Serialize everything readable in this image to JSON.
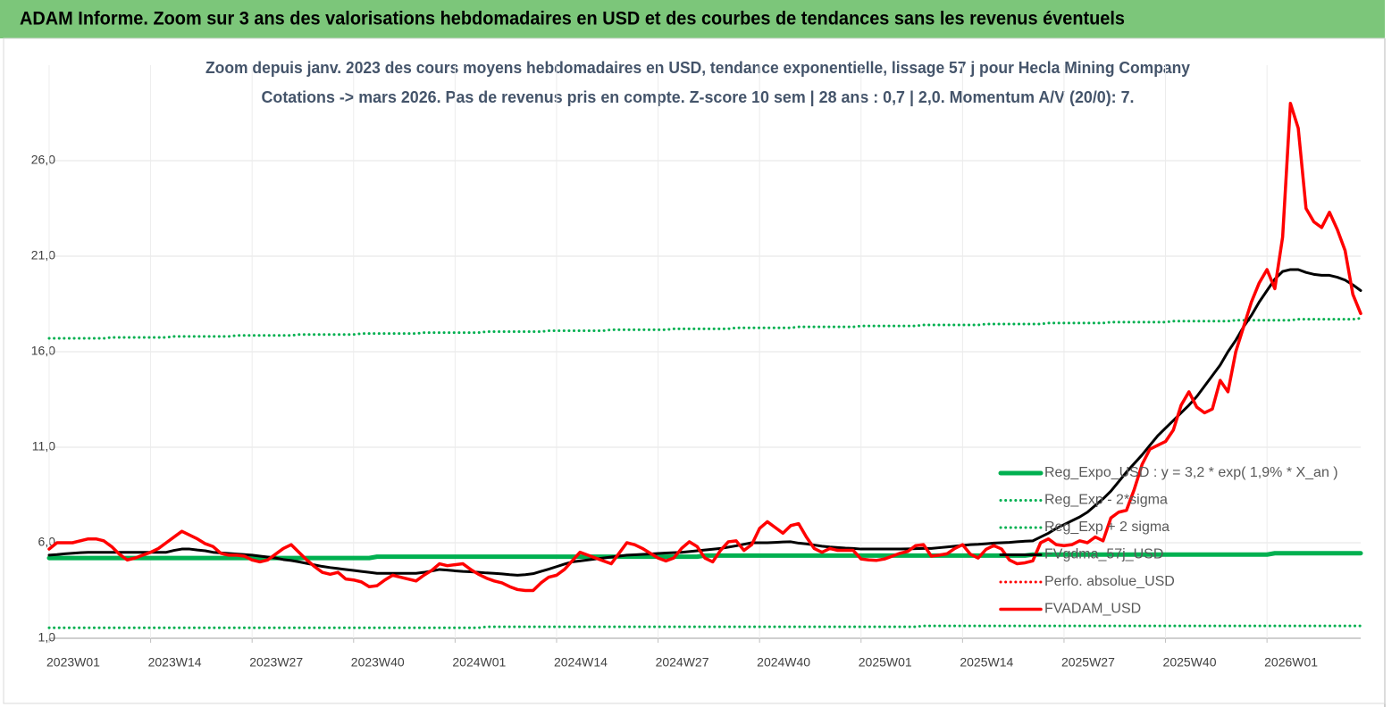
{
  "chart_data": {
    "type": "line",
    "title": "ADAM Informe. Zoom sur 3 ans des valorisations hebdomadaires en USD et des courbes de tendances sans les revenus éventuels",
    "subtitle": [
      "Zoom depuis janv. 2023 des cours moyens hebdomadaires en USD, tendance exponentielle, lissage 57 j pour Hecla Mining Company",
      "Cotations -> mars 2026. Pas de revenus pris en compte. Z-score 10 sem | 28 ans : 0,7 | 2,0. Momentum A/V (20/0): 7."
    ],
    "categories": [
      "2023W01",
      null,
      null,
      null,
      null,
      null,
      null,
      null,
      null,
      null,
      null,
      null,
      null,
      "2023W14",
      null,
      null,
      null,
      null,
      null,
      null,
      null,
      null,
      null,
      null,
      null,
      null,
      "2023W27",
      null,
      null,
      null,
      null,
      null,
      null,
      null,
      null,
      null,
      null,
      null,
      null,
      "2023W40",
      null,
      null,
      null,
      null,
      null,
      null,
      null,
      null,
      null,
      null,
      null,
      null,
      "2024W01",
      null,
      null,
      null,
      null,
      null,
      null,
      null,
      null,
      null,
      null,
      null,
      null,
      "2024W14",
      null,
      null,
      null,
      null,
      null,
      null,
      null,
      null,
      null,
      null,
      null,
      null,
      "2024W27",
      null,
      null,
      null,
      null,
      null,
      null,
      null,
      null,
      null,
      null,
      null,
      null,
      "2024W40",
      null,
      null,
      null,
      null,
      null,
      null,
      null,
      null,
      null,
      null,
      null,
      null,
      "2025W01",
      null,
      null,
      null,
      null,
      null,
      null,
      null,
      null,
      null,
      null,
      null,
      null,
      "2025W14",
      null,
      null,
      null,
      null,
      null,
      null,
      null,
      null,
      null,
      null,
      null,
      null,
      "2025W27",
      null,
      null,
      null,
      null,
      null,
      null,
      null,
      null,
      null,
      null,
      null,
      null,
      "2025W40",
      null,
      null,
      null,
      null,
      null,
      null,
      null,
      null,
      null,
      null,
      null,
      null,
      "2026W01",
      null,
      null,
      null,
      null,
      null,
      null,
      null,
      null,
      null,
      null,
      null,
      null
    ],
    "ylim": [
      1,
      31
    ],
    "yticks": [
      {
        "value": 1,
        "label": "1,0"
      },
      {
        "value": 6,
        "label": "6,0"
      },
      {
        "value": 11,
        "label": "11,0"
      },
      {
        "value": 16,
        "label": "16,0"
      },
      {
        "value": 21,
        "label": "21,0"
      },
      {
        "value": 26,
        "label": "26,0"
      }
    ],
    "grid": true,
    "legend": "lower right",
    "series": [
      {
        "name": "Reg_Expo_USD : y = 3,2 * exp( 1,9% * X_an )",
        "color": "#00b050",
        "style": "solid",
        "values": [
          5.2,
          5.2,
          5.2,
          5.2,
          5.2,
          5.2,
          5.2,
          5.2,
          5.2,
          5.2,
          5.2,
          5.2,
          5.2,
          5.2,
          5.2,
          5.2,
          5.2,
          5.2,
          5.2,
          5.2,
          5.2,
          5.2,
          5.2,
          5.2,
          5.2,
          5.2,
          5.2,
          5.2,
          5.2,
          5.2,
          5.2,
          5.2,
          5.2,
          5.2,
          5.2,
          5.2,
          5.2,
          5.2,
          5.2,
          5.2,
          5.2,
          5.2,
          5.27,
          5.27,
          5.27,
          5.27,
          5.27,
          5.27,
          5.27,
          5.27,
          5.27,
          5.27,
          5.27,
          5.27,
          5.27,
          5.27,
          5.27,
          5.27,
          5.27,
          5.27,
          5.27,
          5.27,
          5.27,
          5.27,
          5.27,
          5.27,
          5.27,
          5.27,
          5.27,
          5.27,
          5.27,
          5.27,
          5.27,
          5.27,
          5.27,
          5.27,
          5.27,
          5.27,
          5.27,
          5.27,
          5.27,
          5.27,
          5.27,
          5.27,
          5.33,
          5.33,
          5.33,
          5.33,
          5.33,
          5.33,
          5.33,
          5.33,
          5.33,
          5.33,
          5.33,
          5.33,
          5.33,
          5.33,
          5.33,
          5.33,
          5.33,
          5.33,
          5.33,
          5.33,
          5.33,
          5.33,
          5.33,
          5.33,
          5.33,
          5.33,
          5.33,
          5.33,
          5.33,
          5.33,
          5.33,
          5.33,
          5.33,
          5.33,
          5.33,
          5.33,
          5.33,
          5.33,
          5.33,
          5.33,
          5.33,
          5.33,
          5.38,
          5.38,
          5.38,
          5.38,
          5.38,
          5.38,
          5.38,
          5.38,
          5.38,
          5.38,
          5.38,
          5.38,
          5.38,
          5.38,
          5.38,
          5.38,
          5.38,
          5.38,
          5.38,
          5.38,
          5.38,
          5.38,
          5.38,
          5.38,
          5.38,
          5.38,
          5.38,
          5.38,
          5.38,
          5.38,
          5.38,
          5.45,
          5.45,
          5.45,
          5.45,
          5.45,
          5.45,
          5.45,
          5.45,
          5.45,
          5.45,
          5.45,
          5.45
        ]
      },
      {
        "name": "Reg_Exp - 2*sigma",
        "color": "#00b050",
        "style": "dotted",
        "values": [
          1.55,
          1.55,
          1.55,
          1.55,
          1.55,
          1.55,
          1.55,
          1.55,
          1.55,
          1.55,
          1.55,
          1.55,
          1.55,
          1.55,
          1.55,
          1.55,
          1.55,
          1.55,
          1.55,
          1.55,
          1.55,
          1.55,
          1.55,
          1.55,
          1.55,
          1.55,
          1.55,
          1.55,
          1.55,
          1.55,
          1.55,
          1.55,
          1.55,
          1.55,
          1.55,
          1.55,
          1.55,
          1.55,
          1.55,
          1.55,
          1.55,
          1.55,
          1.55,
          1.55,
          1.55,
          1.55,
          1.55,
          1.55,
          1.55,
          1.55,
          1.55,
          1.55,
          1.55,
          1.55,
          1.55,
          1.55,
          1.6,
          1.6,
          1.6,
          1.6,
          1.6,
          1.6,
          1.6,
          1.6,
          1.6,
          1.6,
          1.6,
          1.6,
          1.6,
          1.6,
          1.6,
          1.6,
          1.6,
          1.6,
          1.6,
          1.6,
          1.6,
          1.6,
          1.6,
          1.6,
          1.6,
          1.6,
          1.6,
          1.6,
          1.6,
          1.6,
          1.6,
          1.6,
          1.6,
          1.6,
          1.6,
          1.6,
          1.6,
          1.6,
          1.6,
          1.6,
          1.6,
          1.6,
          1.6,
          1.6,
          1.6,
          1.6,
          1.6,
          1.6,
          1.6,
          1.6,
          1.6,
          1.6,
          1.6,
          1.6,
          1.6,
          1.6,
          1.65,
          1.65,
          1.65,
          1.65,
          1.65,
          1.65,
          1.65,
          1.65,
          1.65,
          1.65,
          1.65,
          1.65,
          1.65,
          1.65,
          1.65,
          1.65,
          1.65,
          1.65,
          1.65,
          1.65,
          1.65,
          1.65,
          1.65,
          1.65,
          1.65,
          1.65,
          1.65,
          1.65,
          1.65,
          1.65,
          1.65,
          1.65,
          1.65,
          1.65,
          1.65,
          1.65,
          1.65,
          1.65,
          1.65,
          1.65,
          1.65,
          1.65,
          1.65,
          1.65,
          1.65,
          1.65,
          1.65,
          1.65,
          1.65,
          1.65,
          1.65,
          1.65,
          1.65,
          1.65,
          1.65,
          1.65,
          1.65
        ]
      },
      {
        "name": "Reg_Exp + 2 sigma",
        "color": "#00b050",
        "style": "dotted",
        "values": [
          16.7,
          16.7,
          16.7,
          16.7,
          16.7,
          16.7,
          16.7,
          16.7,
          16.75,
          16.75,
          16.75,
          16.75,
          16.75,
          16.75,
          16.75,
          16.75,
          16.8,
          16.8,
          16.8,
          16.8,
          16.8,
          16.8,
          16.8,
          16.8,
          16.85,
          16.85,
          16.85,
          16.85,
          16.85,
          16.85,
          16.85,
          16.85,
          16.9,
          16.9,
          16.9,
          16.9,
          16.9,
          16.9,
          16.9,
          16.9,
          16.95,
          16.95,
          16.95,
          16.95,
          16.95,
          16.95,
          16.95,
          16.95,
          17.0,
          17.0,
          17.0,
          17.0,
          17.0,
          17.0,
          17.0,
          17.0,
          17.05,
          17.05,
          17.05,
          17.05,
          17.05,
          17.05,
          17.05,
          17.05,
          17.1,
          17.1,
          17.1,
          17.1,
          17.1,
          17.1,
          17.1,
          17.1,
          17.15,
          17.15,
          17.15,
          17.15,
          17.15,
          17.15,
          17.15,
          17.15,
          17.2,
          17.2,
          17.2,
          17.2,
          17.2,
          17.2,
          17.2,
          17.2,
          17.25,
          17.25,
          17.25,
          17.25,
          17.25,
          17.25,
          17.25,
          17.25,
          17.3,
          17.3,
          17.3,
          17.3,
          17.3,
          17.3,
          17.3,
          17.3,
          17.35,
          17.35,
          17.35,
          17.35,
          17.35,
          17.35,
          17.35,
          17.35,
          17.4,
          17.4,
          17.4,
          17.4,
          17.4,
          17.4,
          17.4,
          17.4,
          17.45,
          17.45,
          17.45,
          17.45,
          17.45,
          17.45,
          17.45,
          17.45,
          17.5,
          17.5,
          17.5,
          17.5,
          17.5,
          17.5,
          17.5,
          17.5,
          17.55,
          17.55,
          17.55,
          17.55,
          17.55,
          17.55,
          17.55,
          17.55,
          17.6,
          17.6,
          17.6,
          17.6,
          17.6,
          17.6,
          17.6,
          17.6,
          17.65,
          17.65,
          17.65,
          17.65,
          17.65,
          17.65,
          17.65,
          17.65,
          17.7,
          17.7,
          17.7,
          17.7,
          17.7,
          17.7,
          17.7,
          17.7,
          17.75
        ]
      },
      {
        "name": "FVgdma_57j_USD",
        "color": "#000000",
        "style": "solid",
        "values": [
          5.35,
          5.38,
          5.42,
          5.45,
          5.48,
          5.5,
          5.5,
          5.5,
          5.5,
          5.5,
          5.5,
          5.5,
          5.5,
          5.5,
          5.5,
          5.5,
          5.6,
          5.67,
          5.67,
          5.62,
          5.58,
          5.5,
          5.47,
          5.44,
          5.41,
          5.38,
          5.35,
          5.3,
          5.25,
          5.2,
          5.12,
          5.07,
          5.0,
          4.92,
          4.84,
          4.76,
          4.7,
          4.65,
          4.6,
          4.55,
          4.5,
          4.45,
          4.4,
          4.4,
          4.4,
          4.4,
          4.4,
          4.4,
          4.45,
          4.52,
          4.6,
          4.57,
          4.53,
          4.5,
          4.48,
          4.45,
          4.42,
          4.4,
          4.37,
          4.33,
          4.3,
          4.33,
          4.38,
          4.5,
          4.62,
          4.75,
          4.88,
          5.0,
          5.05,
          5.1,
          5.15,
          5.2,
          5.25,
          5.3,
          5.35,
          5.37,
          5.39,
          5.41,
          5.44,
          5.46,
          5.48,
          5.5,
          5.54,
          5.58,
          5.62,
          5.66,
          5.7,
          5.77,
          5.84,
          5.92,
          6.0,
          6.0,
          6.0,
          6.02,
          6.04,
          6.05,
          5.98,
          5.94,
          5.88,
          5.82,
          5.78,
          5.75,
          5.72,
          5.7,
          5.67,
          5.67,
          5.67,
          5.67,
          5.67,
          5.67,
          5.68,
          5.69,
          5.7,
          5.7,
          5.74,
          5.78,
          5.82,
          5.86,
          5.9,
          5.92,
          5.95,
          5.98,
          6.0,
          6.02,
          6.05,
          6.08,
          6.1,
          6.3,
          6.5,
          6.75,
          6.95,
          7.15,
          7.35,
          7.6,
          7.95,
          8.3,
          8.7,
          9.2,
          9.7,
          10.15,
          10.6,
          11.1,
          11.6,
          12.0,
          12.4,
          12.8,
          13.2,
          13.65,
          14.2,
          14.75,
          15.3,
          16.0,
          16.6,
          17.3,
          17.9,
          18.6,
          19.2,
          19.8,
          20.2,
          20.3,
          20.3,
          20.15,
          20.05,
          20.0,
          20.0,
          19.9,
          19.75,
          19.5,
          19.2
        ]
      },
      {
        "name": "Perfo. absolue_USD",
        "color": "#ff0000",
        "style": "dotted",
        "values": [
          null,
          null,
          null,
          null,
          null,
          null,
          null,
          null,
          null,
          null,
          null,
          null,
          null,
          null,
          null,
          null,
          null,
          null,
          null,
          null,
          null,
          null,
          null,
          null,
          null,
          null,
          null,
          null,
          null,
          null,
          null,
          null,
          null,
          null,
          null,
          null,
          null,
          null,
          null,
          null,
          null,
          null,
          null,
          null,
          null,
          null,
          null,
          null,
          null,
          null,
          null,
          null,
          null,
          null,
          null,
          null,
          null,
          null,
          null,
          null,
          null,
          null,
          null,
          null,
          null,
          null,
          null,
          null,
          null,
          null,
          null,
          null,
          null,
          null,
          null,
          null,
          null,
          null,
          null,
          null,
          null,
          null,
          null,
          null,
          null,
          null,
          null,
          null,
          null,
          null,
          null,
          null,
          null,
          null,
          null,
          null,
          null,
          null,
          null,
          null,
          null,
          null,
          null,
          null,
          null,
          null,
          null,
          null,
          null,
          null,
          null,
          null,
          null,
          null,
          null,
          null,
          null,
          null,
          null,
          null,
          null,
          null,
          null,
          null,
          null,
          null,
          null,
          null,
          null,
          null,
          null,
          null,
          null,
          null,
          null,
          null,
          null,
          null,
          null,
          null,
          null,
          null,
          null,
          null,
          null,
          null,
          null,
          null,
          null,
          null,
          null,
          null,
          null,
          null,
          null,
          null,
          null,
          null,
          null,
          null,
          null,
          null,
          null,
          null,
          null,
          null,
          null,
          null,
          null
        ]
      },
      {
        "name": "FVADAM_USD",
        "color": "#ff0000",
        "style": "solid",
        "values": [
          5.67,
          6.0,
          6.0,
          6.0,
          6.1,
          6.2,
          6.2,
          6.1,
          5.8,
          5.4,
          5.1,
          5.2,
          5.35,
          5.5,
          5.7,
          6.0,
          6.3,
          6.6,
          6.4,
          6.2,
          5.95,
          5.8,
          5.45,
          5.35,
          5.35,
          5.3,
          5.1,
          5.0,
          5.1,
          5.4,
          5.7,
          5.9,
          5.5,
          5.1,
          4.75,
          4.45,
          4.35,
          4.45,
          4.1,
          4.05,
          3.95,
          3.7,
          3.75,
          4.05,
          4.3,
          4.2,
          4.1,
          4.0,
          4.3,
          4.55,
          4.9,
          4.8,
          4.85,
          4.9,
          4.6,
          4.35,
          4.15,
          4.0,
          3.9,
          3.7,
          3.55,
          3.5,
          3.5,
          3.9,
          4.2,
          4.3,
          4.6,
          5.05,
          5.5,
          5.35,
          5.2,
          5.05,
          4.9,
          5.45,
          6.0,
          5.9,
          5.7,
          5.45,
          5.2,
          5.05,
          5.2,
          5.7,
          6.05,
          5.8,
          5.2,
          5.0,
          5.6,
          6.05,
          6.1,
          5.6,
          5.9,
          6.75,
          7.1,
          6.8,
          6.5,
          6.9,
          7.0,
          6.3,
          5.7,
          5.5,
          5.7,
          5.6,
          5.6,
          5.6,
          5.15,
          5.1,
          5.08,
          5.15,
          5.3,
          5.45,
          5.55,
          5.85,
          5.9,
          5.3,
          5.35,
          5.42,
          5.7,
          5.9,
          5.4,
          5.2,
          5.65,
          5.85,
          5.67,
          5.1,
          4.9,
          4.95,
          5.05,
          6.0,
          6.2,
          5.9,
          5.85,
          5.9,
          6.1,
          6.0,
          6.3,
          6.1,
          7.3,
          7.6,
          7.7,
          8.8,
          10.1,
          10.9,
          11.1,
          11.3,
          11.9,
          13.2,
          13.9,
          13.1,
          12.8,
          13.0,
          14.5,
          13.9,
          16.0,
          17.3,
          18.6,
          19.6,
          20.3,
          19.3,
          22.0,
          29.0,
          27.7,
          23.5,
          22.8,
          22.5,
          23.3,
          22.4,
          21.3,
          19.0,
          18.0
        ]
      }
    ]
  }
}
